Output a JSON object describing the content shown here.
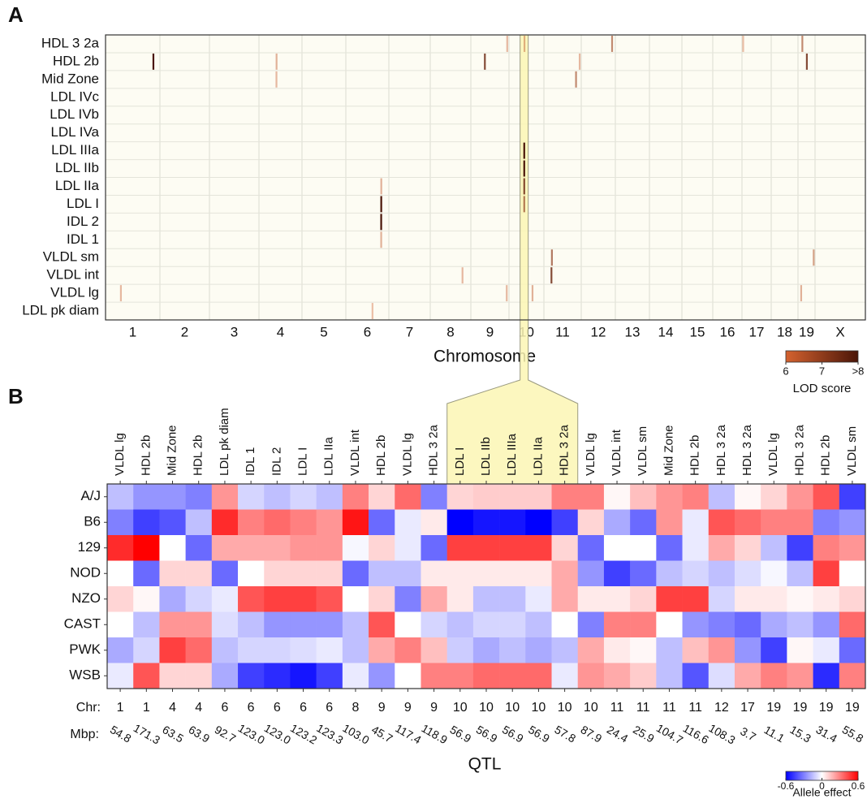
{
  "chart_data": [
    {
      "type": "genome_scan",
      "panel_label": "A",
      "xlabel": "Chromosome",
      "rows": [
        "HDL 3 2a",
        "HDL 2b",
        "Mid Zone",
        "LDL IVc",
        "LDL IVb",
        "LDL IVa",
        "LDL IIIa",
        "LDL IIb",
        "LDL IIa",
        "LDL I",
        "IDL 2",
        "IDL 1",
        "VLDL sm",
        "VLDL int",
        "VLDL lg",
        "LDL pk diam"
      ],
      "chromosomes": [
        "1",
        "2",
        "3",
        "4",
        "5",
        "6",
        "7",
        "8",
        "9",
        "10",
        "11",
        "12",
        "13",
        "14",
        "15",
        "16",
        "17",
        "18",
        "19",
        "X"
      ],
      "peaks": [
        {
          "row": 0,
          "chromosome": "12",
          "mbp": 108.3,
          "lod": 6.8
        },
        {
          "row": 0,
          "chromosome": "19",
          "mbp": 15.3,
          "lod": 6.8
        },
        {
          "row": 0,
          "chromosome": "17",
          "mbp": 3.7,
          "lod": 6.1
        },
        {
          "row": 0,
          "chromosome": "9",
          "mbp": 118.9,
          "lod": 6.2
        },
        {
          "row": 0,
          "chromosome": "10",
          "mbp": 57.8,
          "lod": 6.3
        },
        {
          "row": 1,
          "chromosome": "1",
          "mbp": 171.3,
          "lod": 8
        },
        {
          "row": 1,
          "chromosome": "4",
          "mbp": 63.9,
          "lod": 6.3
        },
        {
          "row": 1,
          "chromosome": "9",
          "mbp": 45.7,
          "lod": 7.5
        },
        {
          "row": 1,
          "chromosome": "11",
          "mbp": 116.6,
          "lod": 6.2
        },
        {
          "row": 1,
          "chromosome": "19",
          "mbp": 31.4,
          "lod": 7.5
        },
        {
          "row": 2,
          "chromosome": "11",
          "mbp": 104.7,
          "lod": 6.8
        },
        {
          "row": 2,
          "chromosome": "4",
          "mbp": 63.5,
          "lod": 6.2
        },
        {
          "row": 6,
          "chromosome": "10",
          "mbp": 56.9,
          "lod": 8
        },
        {
          "row": 7,
          "chromosome": "10",
          "mbp": 56.9,
          "lod": 8
        },
        {
          "row": 8,
          "chromosome": "10",
          "mbp": 56.9,
          "lod": 7.5
        },
        {
          "row": 9,
          "chromosome": "10",
          "mbp": 56.9,
          "lod": 7
        },
        {
          "row": 8,
          "chromosome": "6",
          "mbp": 123.3,
          "lod": 6.3
        },
        {
          "row": 9,
          "chromosome": "6",
          "mbp": 123.2,
          "lod": 8
        },
        {
          "row": 10,
          "chromosome": "6",
          "mbp": 123.0,
          "lod": 8
        },
        {
          "row": 11,
          "chromosome": "6",
          "mbp": 123.0,
          "lod": 6.3
        },
        {
          "row": 12,
          "chromosome": "11",
          "mbp": 25.9,
          "lod": 7
        },
        {
          "row": 12,
          "chromosome": "19",
          "mbp": 55.8,
          "lod": 6.5
        },
        {
          "row": 13,
          "chromosome": "11",
          "mbp": 24.4,
          "lod": 7.5
        },
        {
          "row": 13,
          "chromosome": "8",
          "mbp": 103.0,
          "lod": 6.2
        },
        {
          "row": 14,
          "chromosome": "1",
          "mbp": 54.8,
          "lod": 6.2
        },
        {
          "row": 14,
          "chromosome": "9",
          "mbp": 117.4,
          "lod": 6.2
        },
        {
          "row": 14,
          "chromosome": "10",
          "mbp": 87.9,
          "lod": 6.3
        },
        {
          "row": 14,
          "chromosome": "19",
          "mbp": 11.1,
          "lod": 6.3
        },
        {
          "row": 15,
          "chromosome": "6",
          "mbp": 92.7,
          "lod": 6.1
        }
      ],
      "highlight": {
        "chromosome": "10",
        "mbp": 56.9
      },
      "colorbar": {
        "title": "LOD score",
        "lim": [
          6,
          8
        ],
        "ticks": [
          6,
          7,
          {
            "value": 8,
            "label": ">8"
          }
        ],
        "colors": [
          "#d4622f",
          "#4a1508"
        ]
      }
    },
    {
      "type": "heatmap",
      "panel_label": "B",
      "xlabel": "QTL",
      "chr_title": "Chr:",
      "mbp_title": "Mbp:",
      "rows": [
        "A/J",
        "B6",
        "129",
        "NOD",
        "NZO",
        "CAST",
        "PWK",
        "WSB"
      ],
      "columns": [
        "VLDL lg",
        "HDL 2b",
        "Mid Zone",
        "HDL 2b",
        "LDL pk diam",
        "IDL 1",
        "IDL 2",
        "LDL I",
        "LDL IIa",
        "VLDL int",
        "HDL 2b",
        "VLDL lg",
        "HDL 3 2a",
        "LDL I",
        "LDL IIb",
        "LDL IIIa",
        "LDL IIa",
        "HDL 3 2a",
        "VLDL lg",
        "VLDL int",
        "VLDL sm",
        "Mid Zone",
        "HDL 2b",
        "HDL 3 2a",
        "HDL 3 2a",
        "VLDL lg",
        "HDL 3 2a",
        "HDL 2b",
        "VLDL sm"
      ],
      "chr": [
        1,
        1,
        4,
        4,
        6,
        6,
        6,
        6,
        6,
        8,
        9,
        9,
        9,
        10,
        10,
        10,
        10,
        10,
        10,
        11,
        11,
        11,
        11,
        12,
        17,
        19,
        19,
        19,
        19
      ],
      "mbp": [
        54.8,
        171.3,
        63.5,
        63.9,
        92.7,
        {
          "value": 123,
          "label": "123.0"
        },
        {
          "value": 123,
          "label": "123.0"
        },
        123.2,
        123.3,
        {
          "value": 103,
          "label": "103.0"
        },
        45.7,
        117.4,
        118.9,
        56.9,
        56.9,
        56.9,
        56.9,
        57.8,
        87.9,
        24.4,
        25.9,
        104.7,
        116.6,
        108.3,
        3.7,
        11.1,
        15.3,
        31.4,
        55.8
      ],
      "highlight_columns": [
        13,
        17
      ],
      "values": [
        [
          -0.15,
          -0.25,
          -0.25,
          -0.3,
          0.25,
          -0.1,
          -0.15,
          -0.1,
          -0.15,
          0.3,
          0.1,
          0.35,
          -0.3,
          0.1,
          0.12,
          0.12,
          0.12,
          0.3,
          0.3,
          0.02,
          0.15,
          0.25,
          0.3,
          -0.15,
          0.02,
          0.1,
          0.25,
          0.4,
          -0.45
        ],
        [
          -0.3,
          -0.45,
          -0.4,
          -0.15,
          0.5,
          0.3,
          0.35,
          0.3,
          0.25,
          0.55,
          -0.35,
          -0.05,
          0.05,
          -0.6,
          -0.55,
          -0.55,
          -0.6,
          -0.45,
          0.1,
          -0.2,
          -0.35,
          0.25,
          -0.05,
          0.4,
          0.35,
          0.3,
          0.3,
          -0.3,
          -0.25
        ],
        [
          0.5,
          0.6,
          0,
          -0.35,
          0.2,
          0.2,
          0.2,
          0.25,
          0.25,
          -0.02,
          0.1,
          -0.05,
          -0.35,
          0.45,
          0.45,
          0.45,
          0.45,
          0.1,
          -0.35,
          0,
          0,
          -0.35,
          -0.05,
          0.2,
          0.1,
          -0.15,
          -0.45,
          0.3,
          0.25
        ],
        [
          0,
          -0.35,
          0.1,
          0.1,
          -0.35,
          0,
          0.1,
          0.1,
          0.1,
          -0.35,
          -0.15,
          -0.15,
          0.05,
          0.05,
          0.05,
          0.05,
          0.05,
          0.2,
          -0.25,
          -0.45,
          -0.35,
          -0.15,
          -0.1,
          -0.15,
          -0.08,
          -0.02,
          -0.15,
          0.45,
          0
        ],
        [
          0.1,
          0.02,
          -0.2,
          -0.1,
          -0.05,
          0.4,
          0.45,
          0.45,
          0.4,
          0,
          0.1,
          -0.3,
          0.2,
          0.05,
          -0.15,
          -0.15,
          -0.05,
          0.2,
          0.05,
          0.05,
          0.1,
          0.45,
          0.45,
          -0.1,
          0.05,
          0.05,
          0.02,
          0.05,
          0.1
        ],
        [
          0,
          -0.15,
          0.25,
          0.25,
          -0.08,
          -0.15,
          -0.25,
          -0.25,
          -0.25,
          -0.15,
          0.4,
          0,
          -0.1,
          -0.15,
          -0.1,
          -0.1,
          -0.15,
          0,
          -0.3,
          0.3,
          0.3,
          0,
          -0.25,
          -0.3,
          -0.35,
          -0.2,
          -0.15,
          -0.25,
          0.35
        ],
        [
          -0.2,
          -0.1,
          0.45,
          0.35,
          -0.15,
          -0.1,
          -0.1,
          -0.08,
          -0.05,
          -0.15,
          0.2,
          0.3,
          0.15,
          -0.12,
          -0.2,
          -0.15,
          -0.2,
          -0.15,
          0.2,
          0.05,
          0.02,
          -0.15,
          0.15,
          0.25,
          -0.25,
          -0.45,
          0.02,
          -0.05,
          -0.35
        ],
        [
          -0.05,
          0.4,
          0.1,
          0.1,
          -0.2,
          -0.45,
          -0.5,
          -0.55,
          -0.45,
          -0.05,
          -0.25,
          0,
          0.3,
          0.3,
          0.35,
          0.35,
          0.35,
          -0.05,
          0.25,
          0.2,
          0.12,
          -0.15,
          -0.4,
          -0.08,
          0.2,
          0.3,
          0.25,
          -0.5,
          0.3
        ]
      ],
      "colorbar": {
        "title": "Allele effect",
        "lim": [
          -0.6,
          0.6
        ],
        "ticks": [
          -0.6,
          0,
          0.6
        ],
        "colors": [
          "#0000ff",
          "#ffffff",
          "#ff0000"
        ]
      }
    }
  ]
}
